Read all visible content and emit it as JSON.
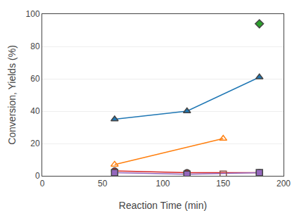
{
  "chart_data": {
    "type": "line",
    "xlabel": "Reaction Time (min)",
    "ylabel": "Conversion, Yields (%)",
    "series": [
      {
        "x": [
          60,
          120,
          180
        ],
        "values": [
          35,
          40,
          61
        ],
        "marker": "triangle-up",
        "line_style": "solid"
      },
      {
        "x": [
          60,
          150
        ],
        "values": [
          7,
          23
        ],
        "marker": "triangle-up-open",
        "line_style": "solid"
      },
      {
        "x": [
          180
        ],
        "values": [
          94
        ],
        "marker": "diamond",
        "line_style": "none"
      },
      {
        "x": [
          60,
          120,
          180
        ],
        "values": [
          3,
          2,
          2
        ],
        "marker": "circle",
        "line_style": "solid"
      },
      {
        "x": [
          60,
          120,
          180
        ],
        "values": [
          2,
          1,
          2
        ],
        "marker": "square",
        "line_style": "solid"
      },
      {
        "x": [
          150
        ],
        "values": [
          1
        ],
        "marker": "square-open",
        "line_style": "none"
      }
    ],
    "xlim": [
      0,
      200
    ],
    "ylim": [
      0,
      100
    ],
    "xticks": [
      0,
      50,
      100,
      150,
      200
    ],
    "yticks": [
      0,
      20,
      40,
      60,
      80,
      100
    ],
    "grid": "y"
  }
}
